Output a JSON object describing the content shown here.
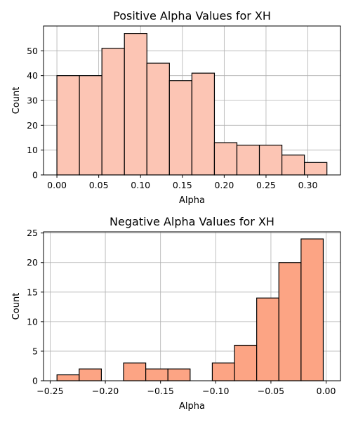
{
  "chart_data": [
    {
      "type": "bar",
      "title": "Positive Alpha Values for XH",
      "xlabel": "Alpha",
      "ylabel": "Count",
      "xlim": [
        -0.016,
        0.339
      ],
      "ylim": [
        0,
        60
      ],
      "xticks": [
        0.0,
        0.05,
        0.1,
        0.15,
        0.2,
        0.25,
        0.3
      ],
      "xtick_labels": [
        "0.00",
        "0.05",
        "0.10",
        "0.15",
        "0.20",
        "0.25",
        "0.30"
      ],
      "yticks": [
        0,
        10,
        20,
        30,
        40,
        50
      ],
      "ytick_labels": [
        "0",
        "10",
        "20",
        "30",
        "40",
        "50"
      ],
      "grid": true,
      "color": "#fcc5b4",
      "bin_edges": [
        0.0,
        0.0269,
        0.0538,
        0.0807,
        0.1076,
        0.1345,
        0.1614,
        0.1883,
        0.2152,
        0.2421,
        0.269,
        0.2959,
        0.3228
      ],
      "values": [
        40,
        40,
        51,
        57,
        45,
        38,
        41,
        13,
        12,
        12,
        8,
        5
      ]
    },
    {
      "type": "bar",
      "title": "Negative Alpha Values for XH",
      "xlabel": "Alpha",
      "ylabel": "Count",
      "xlim": [
        -0.256,
        0.013
      ],
      "ylim": [
        0,
        25.2
      ],
      "xticks": [
        -0.25,
        -0.2,
        -0.15,
        -0.1,
        -0.05,
        0.0
      ],
      "xtick_labels": [
        "−0.25",
        "−0.20",
        "−0.15",
        "−0.10",
        "−0.05",
        "0.00"
      ],
      "yticks": [
        0,
        5,
        10,
        15,
        20,
        25
      ],
      "ytick_labels": [
        "0",
        "5",
        "10",
        "15",
        "20",
        "25"
      ],
      "grid": true,
      "color": "#fca484",
      "bin_edges": [
        -0.2438,
        -0.2237,
        -0.2036,
        -0.1835,
        -0.1634,
        -0.1433,
        -0.1232,
        -0.1031,
        -0.083,
        -0.0629,
        -0.0428,
        -0.0227,
        -0.0026
      ],
      "values": [
        1,
        2,
        0,
        3,
        2,
        2,
        0,
        3,
        6,
        14,
        20,
        24
      ]
    }
  ]
}
